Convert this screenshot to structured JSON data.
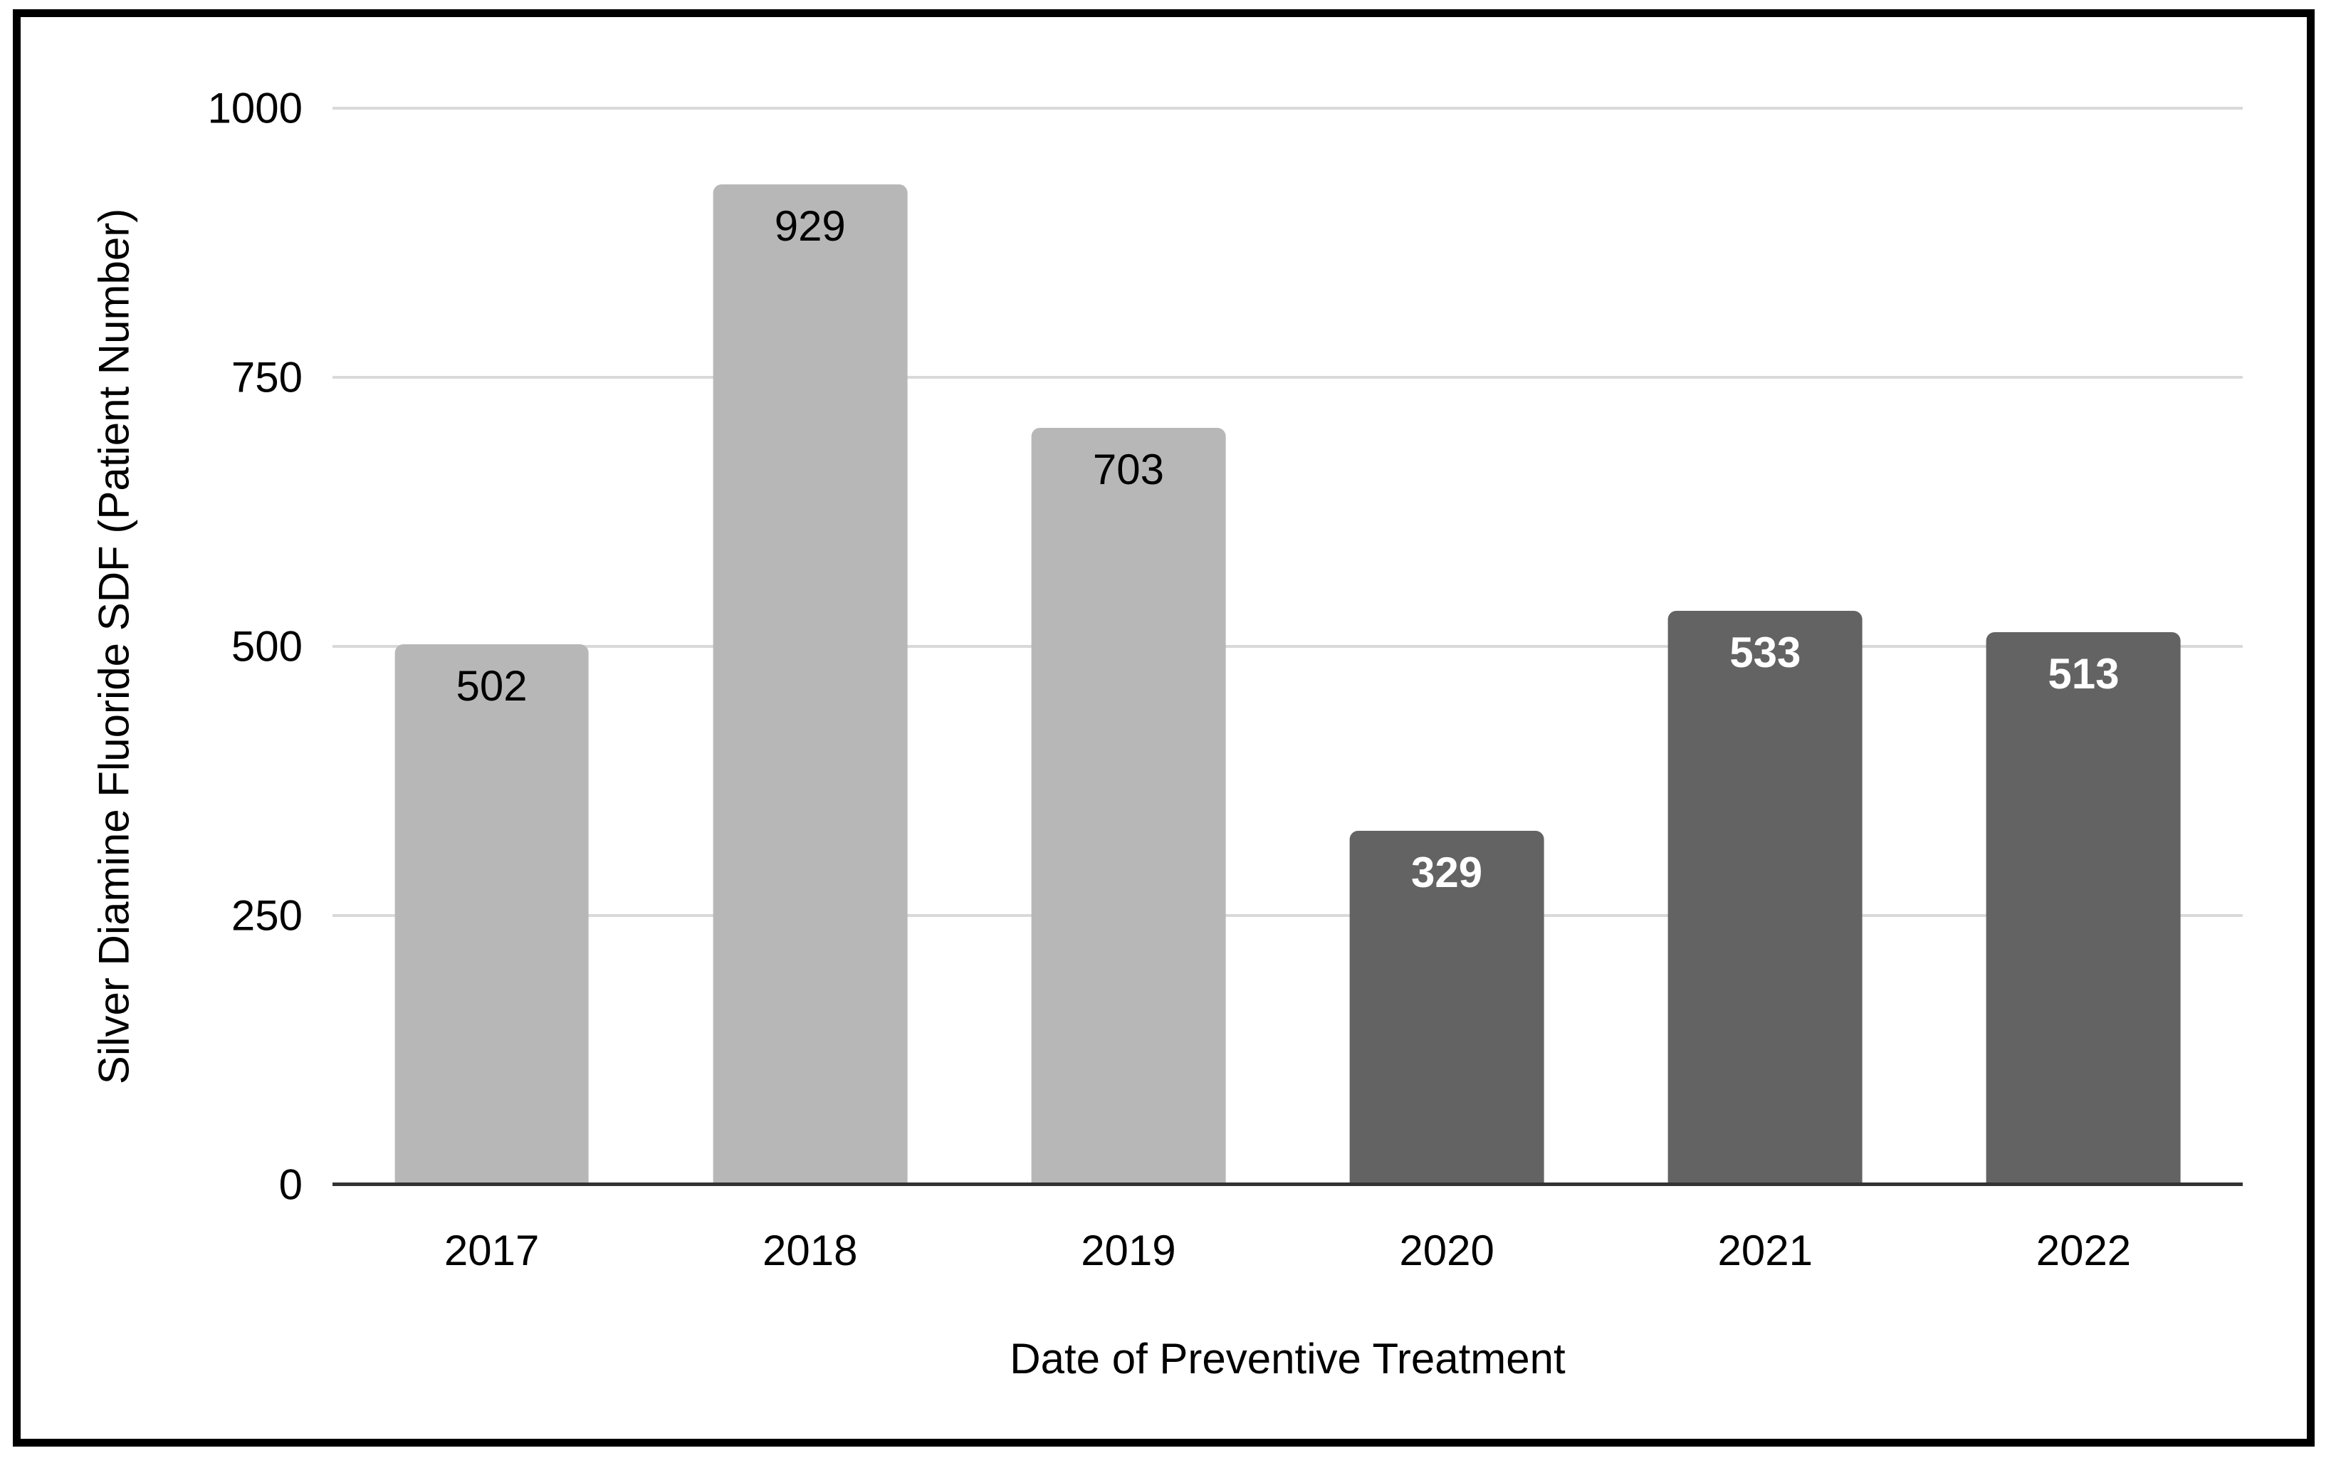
{
  "chart_data": {
    "type": "bar",
    "title": "",
    "categories": [
      "2017",
      "2018",
      "2019",
      "2020",
      "2021",
      "2022"
    ],
    "values": [
      502,
      929,
      703,
      329,
      533,
      513
    ],
    "bar_tones": [
      "light",
      "light",
      "light",
      "dark",
      "dark",
      "dark"
    ],
    "xlabel": "Date of Preventive Treatment",
    "ylabel": "Silver Diamine Fluoride SDF (Patient Number)",
    "ylim": [
      0,
      1000
    ],
    "yticks": [
      0,
      250,
      500,
      750,
      1000
    ],
    "grid": true,
    "legend": "none",
    "data_labels": "inside-top"
  },
  "colors": {
    "bar_light": "#b7b7b7",
    "bar_dark": "#636363",
    "label_on_light": "#000000",
    "label_on_dark": "#ffffff",
    "gridline": "#d9d9d9",
    "axis_line": "#333333",
    "frame": "#000000",
    "background": "#ffffff",
    "text": "#000000"
  }
}
